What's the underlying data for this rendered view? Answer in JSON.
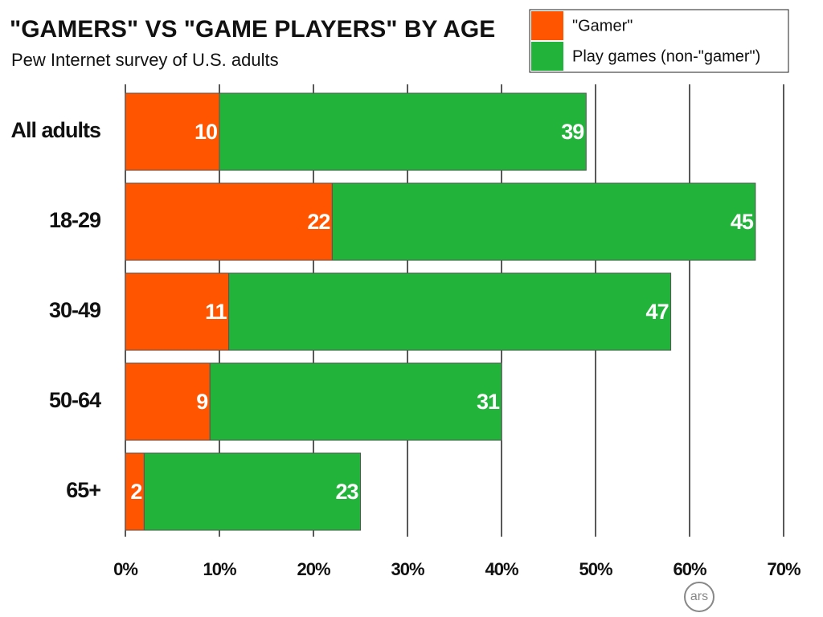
{
  "chart_data": {
    "type": "stacked-bar-horizontal",
    "title": "\"GAMERS\" VS \"GAME PLAYERS\" BY AGE",
    "subtitle": "Pew Internet survey of U.S. adults",
    "categories": [
      "All adults",
      "18-29",
      "30-49",
      "50-64",
      "65+"
    ],
    "series": [
      {
        "name": "\"Gamer\"",
        "color": "#ff5500",
        "values": [
          10,
          22,
          11,
          9,
          2
        ]
      },
      {
        "name": "Play games (non-\"gamer\")",
        "color": "#22b33a",
        "values": [
          39,
          45,
          47,
          31,
          23
        ]
      }
    ],
    "xlim": [
      0,
      70
    ],
    "xticks": [
      {
        "value": 0,
        "label": "0%"
      },
      {
        "value": 10,
        "label": "10%"
      },
      {
        "value": 20,
        "label": "20%"
      },
      {
        "value": 30,
        "label": "30%"
      },
      {
        "value": 40,
        "label": "40%"
      },
      {
        "value": 50,
        "label": "50%"
      },
      {
        "value": 60,
        "label": "60%"
      },
      {
        "value": 70,
        "label": "70%"
      }
    ],
    "grid": true,
    "legend": "top-right",
    "watermark": "ars"
  }
}
